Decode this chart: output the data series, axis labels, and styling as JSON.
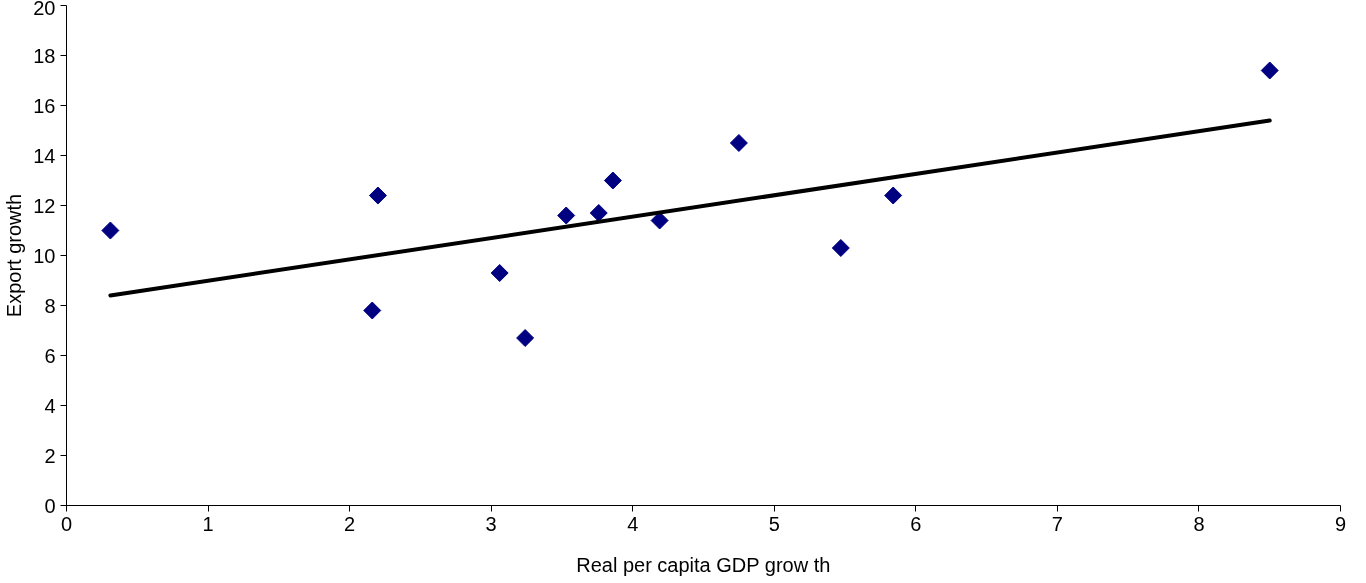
{
  "chart_data": {
    "type": "scatter",
    "xlabel": "Real per capita GDP grow th",
    "ylabel": "Export growth",
    "xlim": [
      0,
      9
    ],
    "ylim": [
      0,
      20
    ],
    "xticks": [
      0,
      1,
      2,
      3,
      4,
      5,
      6,
      7,
      8,
      9
    ],
    "yticks": [
      0,
      2,
      4,
      6,
      8,
      10,
      12,
      14,
      16,
      18,
      20
    ],
    "grid": false,
    "series": [
      {
        "color": "#000080",
        "marker": "diamond",
        "x": [
          0.31,
          2.2,
          2.16,
          3.06,
          3.24,
          3.53,
          3.76,
          3.86,
          4.19,
          4.75,
          5.47,
          5.84,
          8.5
        ],
        "values": [
          11.0,
          12.4,
          7.8,
          9.3,
          6.7,
          11.6,
          11.7,
          13.0,
          11.4,
          14.5,
          10.3,
          12.4,
          17.4
        ]
      },
      {
        "type": "line",
        "color": "#000000",
        "marker": "none",
        "line_style": "solid",
        "x": [
          0.31,
          8.5
        ],
        "values": [
          8.4,
          15.4
        ]
      }
    ]
  }
}
